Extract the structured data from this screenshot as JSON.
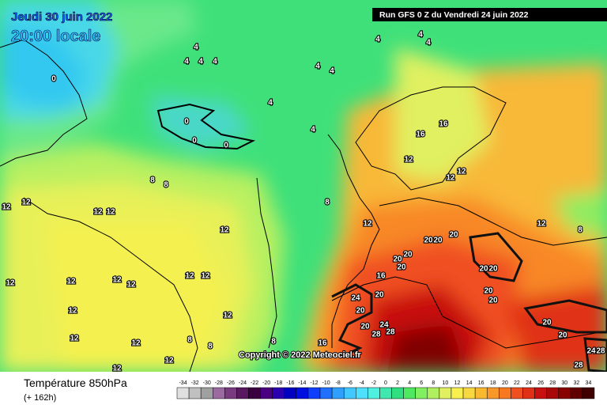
{
  "header": {
    "date": "Jeudi 30 juin 2022",
    "time": "20:00 locale",
    "run": "Run GFS 0 Z du Vendredi 24 juin 2022"
  },
  "map": {
    "copyright": "Copyright © 2022 Meteociel.fr",
    "contour_labels": [
      4,
      4,
      4,
      4,
      4,
      4,
      4,
      4,
      4,
      4,
      4,
      0,
      0,
      0,
      0,
      8,
      8,
      8,
      12,
      12,
      12,
      12,
      12,
      12,
      12,
      12,
      12,
      12,
      8,
      16,
      16,
      12,
      12,
      12,
      12,
      12,
      12,
      12,
      12,
      12,
      12,
      12,
      12,
      8,
      8,
      8,
      16,
      16,
      20,
      20,
      20,
      20,
      20,
      20,
      20,
      20,
      20,
      24,
      20,
      20,
      24,
      28,
      28,
      20,
      20,
      20,
      20,
      24,
      28,
      28
    ]
  },
  "legend": {
    "title": "Température 850hPa",
    "subtitle": "(+ 162h)",
    "labels": [
      -34,
      -32,
      -30,
      -28,
      -26,
      -24,
      -22,
      -20,
      -18,
      -16,
      -14,
      -12,
      -10,
      -8,
      -6,
      -4,
      -2,
      0,
      2,
      4,
      6,
      8,
      10,
      12,
      14,
      16,
      18,
      20,
      22,
      24,
      26,
      28,
      30,
      32,
      34
    ],
    "colors": [
      "#e0e0e0",
      "#c0c0c0",
      "#a0a0a0",
      "#9a6aa0",
      "#7a3a80",
      "#5a1860",
      "#3a0040",
      "#4a0080",
      "#2a00b0",
      "#0000c0",
      "#0010e0",
      "#1040ff",
      "#2070ff",
      "#30a0ff",
      "#40c8ff",
      "#50e0ff",
      "#50f0e0",
      "#40e8b0",
      "#30e080",
      "#50e860",
      "#80f060",
      "#b0f060",
      "#e0f060",
      "#f8f050",
      "#f8d840",
      "#f8b830",
      "#f89828",
      "#f87820",
      "#f05020",
      "#e03018",
      "#c81010",
      "#a80808",
      "#880000",
      "#600000",
      "#400000"
    ]
  }
}
